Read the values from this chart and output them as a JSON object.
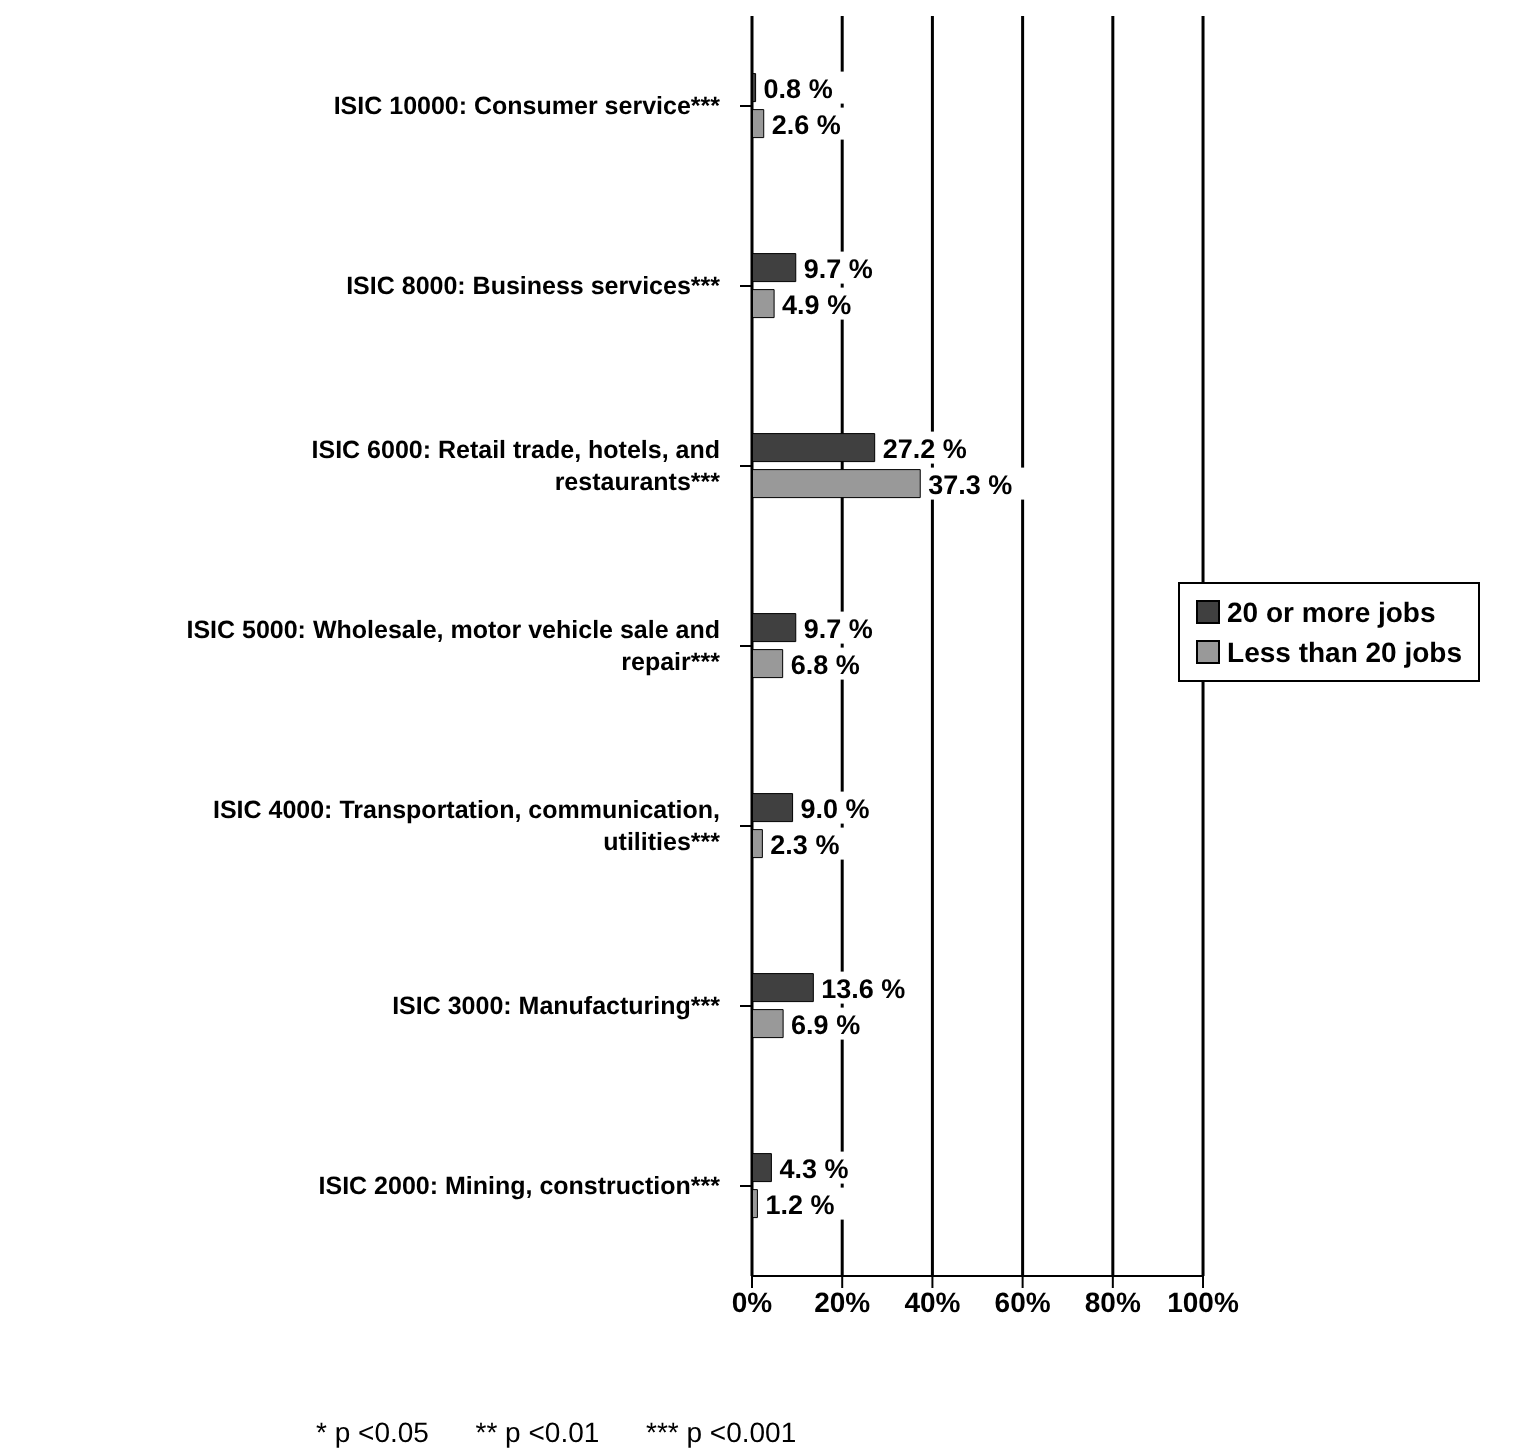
{
  "chart_data": {
    "type": "bar",
    "orientation": "horizontal",
    "categories": [
      "ISIC 10000: Consumer service***",
      "ISIC 8000: Business services***",
      "ISIC 6000: Retail trade, hotels, and restaurants***",
      "ISIC 5000: Wholesale, motor vehicle sale and repair***",
      "ISIC 4000: Transportation, communication, utilities***",
      "ISIC 3000: Manufacturing***",
      "ISIC 2000: Mining, construction***"
    ],
    "series": [
      {
        "name": "20 or more jobs",
        "color": "#404040",
        "values": [
          0.8,
          9.7,
          27.2,
          9.7,
          9.0,
          13.6,
          4.3
        ],
        "value_labels": [
          "0.8 %",
          "9.7 %",
          "27.2 %",
          "9.7 %",
          "9.0 %",
          "13.6 %",
          "4.3 %"
        ]
      },
      {
        "name": "Less than 20 jobs",
        "color": "#999999",
        "values": [
          2.6,
          4.9,
          37.3,
          6.8,
          2.3,
          6.9,
          1.2
        ],
        "value_labels": [
          "2.6 %",
          "4.9 %",
          "37.3 %",
          "6.8 %",
          "2.3 %",
          "6.9 %",
          "1.2 %"
        ]
      }
    ],
    "xlim": [
      0,
      100
    ],
    "xticks": [
      {
        "value": 0,
        "label": "0%"
      },
      {
        "value": 20,
        "label": "20%"
      },
      {
        "value": 40,
        "label": "40%"
      },
      {
        "value": 60,
        "label": "60%"
      },
      {
        "value": 80,
        "label": "80%"
      },
      {
        "value": 100,
        "label": "100%"
      }
    ],
    "grid": "x",
    "legend": "right",
    "annotations": [
      "* p <0.05      ** p <0.01      *** p <0.001"
    ]
  }
}
